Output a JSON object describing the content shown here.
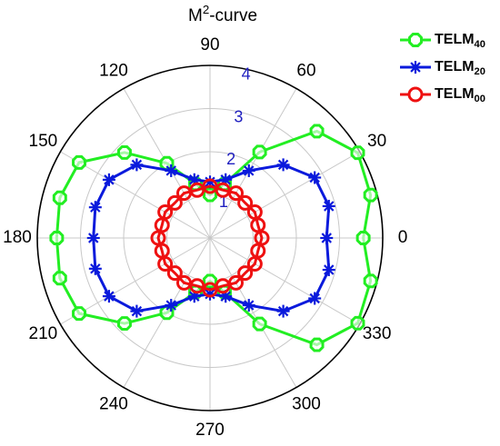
{
  "chart_data": {
    "type": "polar",
    "title": "M2-curve",
    "theta": [
      0,
      15,
      30,
      45,
      60,
      75,
      90,
      105,
      120,
      135,
      150,
      165,
      180,
      195,
      210,
      225,
      240,
      255,
      270,
      285,
      300,
      315,
      330,
      345
    ],
    "series": [
      {
        "name": "TELM40",
        "color": "#22ee22",
        "marker": "octagon",
        "values": [
          3.55,
          3.85,
          3.95,
          3.5,
          2.3,
          1.3,
          1.0,
          1.3,
          2.0,
          2.8,
          3.5,
          3.6,
          3.55,
          3.6,
          3.5,
          2.8,
          2.0,
          1.3,
          1.0,
          1.3,
          2.3,
          3.5,
          3.95,
          3.85
        ]
      },
      {
        "name": "TELM20",
        "color": "#0a1adc",
        "marker": "asterisk",
        "values": [
          2.7,
          2.85,
          2.8,
          2.4,
          1.8,
          1.4,
          1.3,
          1.4,
          1.8,
          2.4,
          2.7,
          2.75,
          2.7,
          2.75,
          2.7,
          2.4,
          1.8,
          1.4,
          1.3,
          1.4,
          1.8,
          2.4,
          2.8,
          2.85
        ]
      },
      {
        "name": "TELM00",
        "color": "#ee1111",
        "marker": "circle",
        "values": [
          1.2,
          1.15,
          1.2,
          1.15,
          1.2,
          1.15,
          1.2,
          1.15,
          1.2,
          1.15,
          1.2,
          1.15,
          1.2,
          1.15,
          1.2,
          1.15,
          1.2,
          1.15,
          1.2,
          1.15,
          1.2,
          1.15,
          1.2,
          1.15
        ]
      }
    ],
    "rlim": [
      0,
      4
    ],
    "rticks": [
      1,
      2,
      3,
      4
    ],
    "thetaticks": [
      0,
      30,
      60,
      90,
      120,
      150,
      180,
      210,
      240,
      270,
      300,
      330
    ],
    "grid": true,
    "legend": "top-right"
  }
}
